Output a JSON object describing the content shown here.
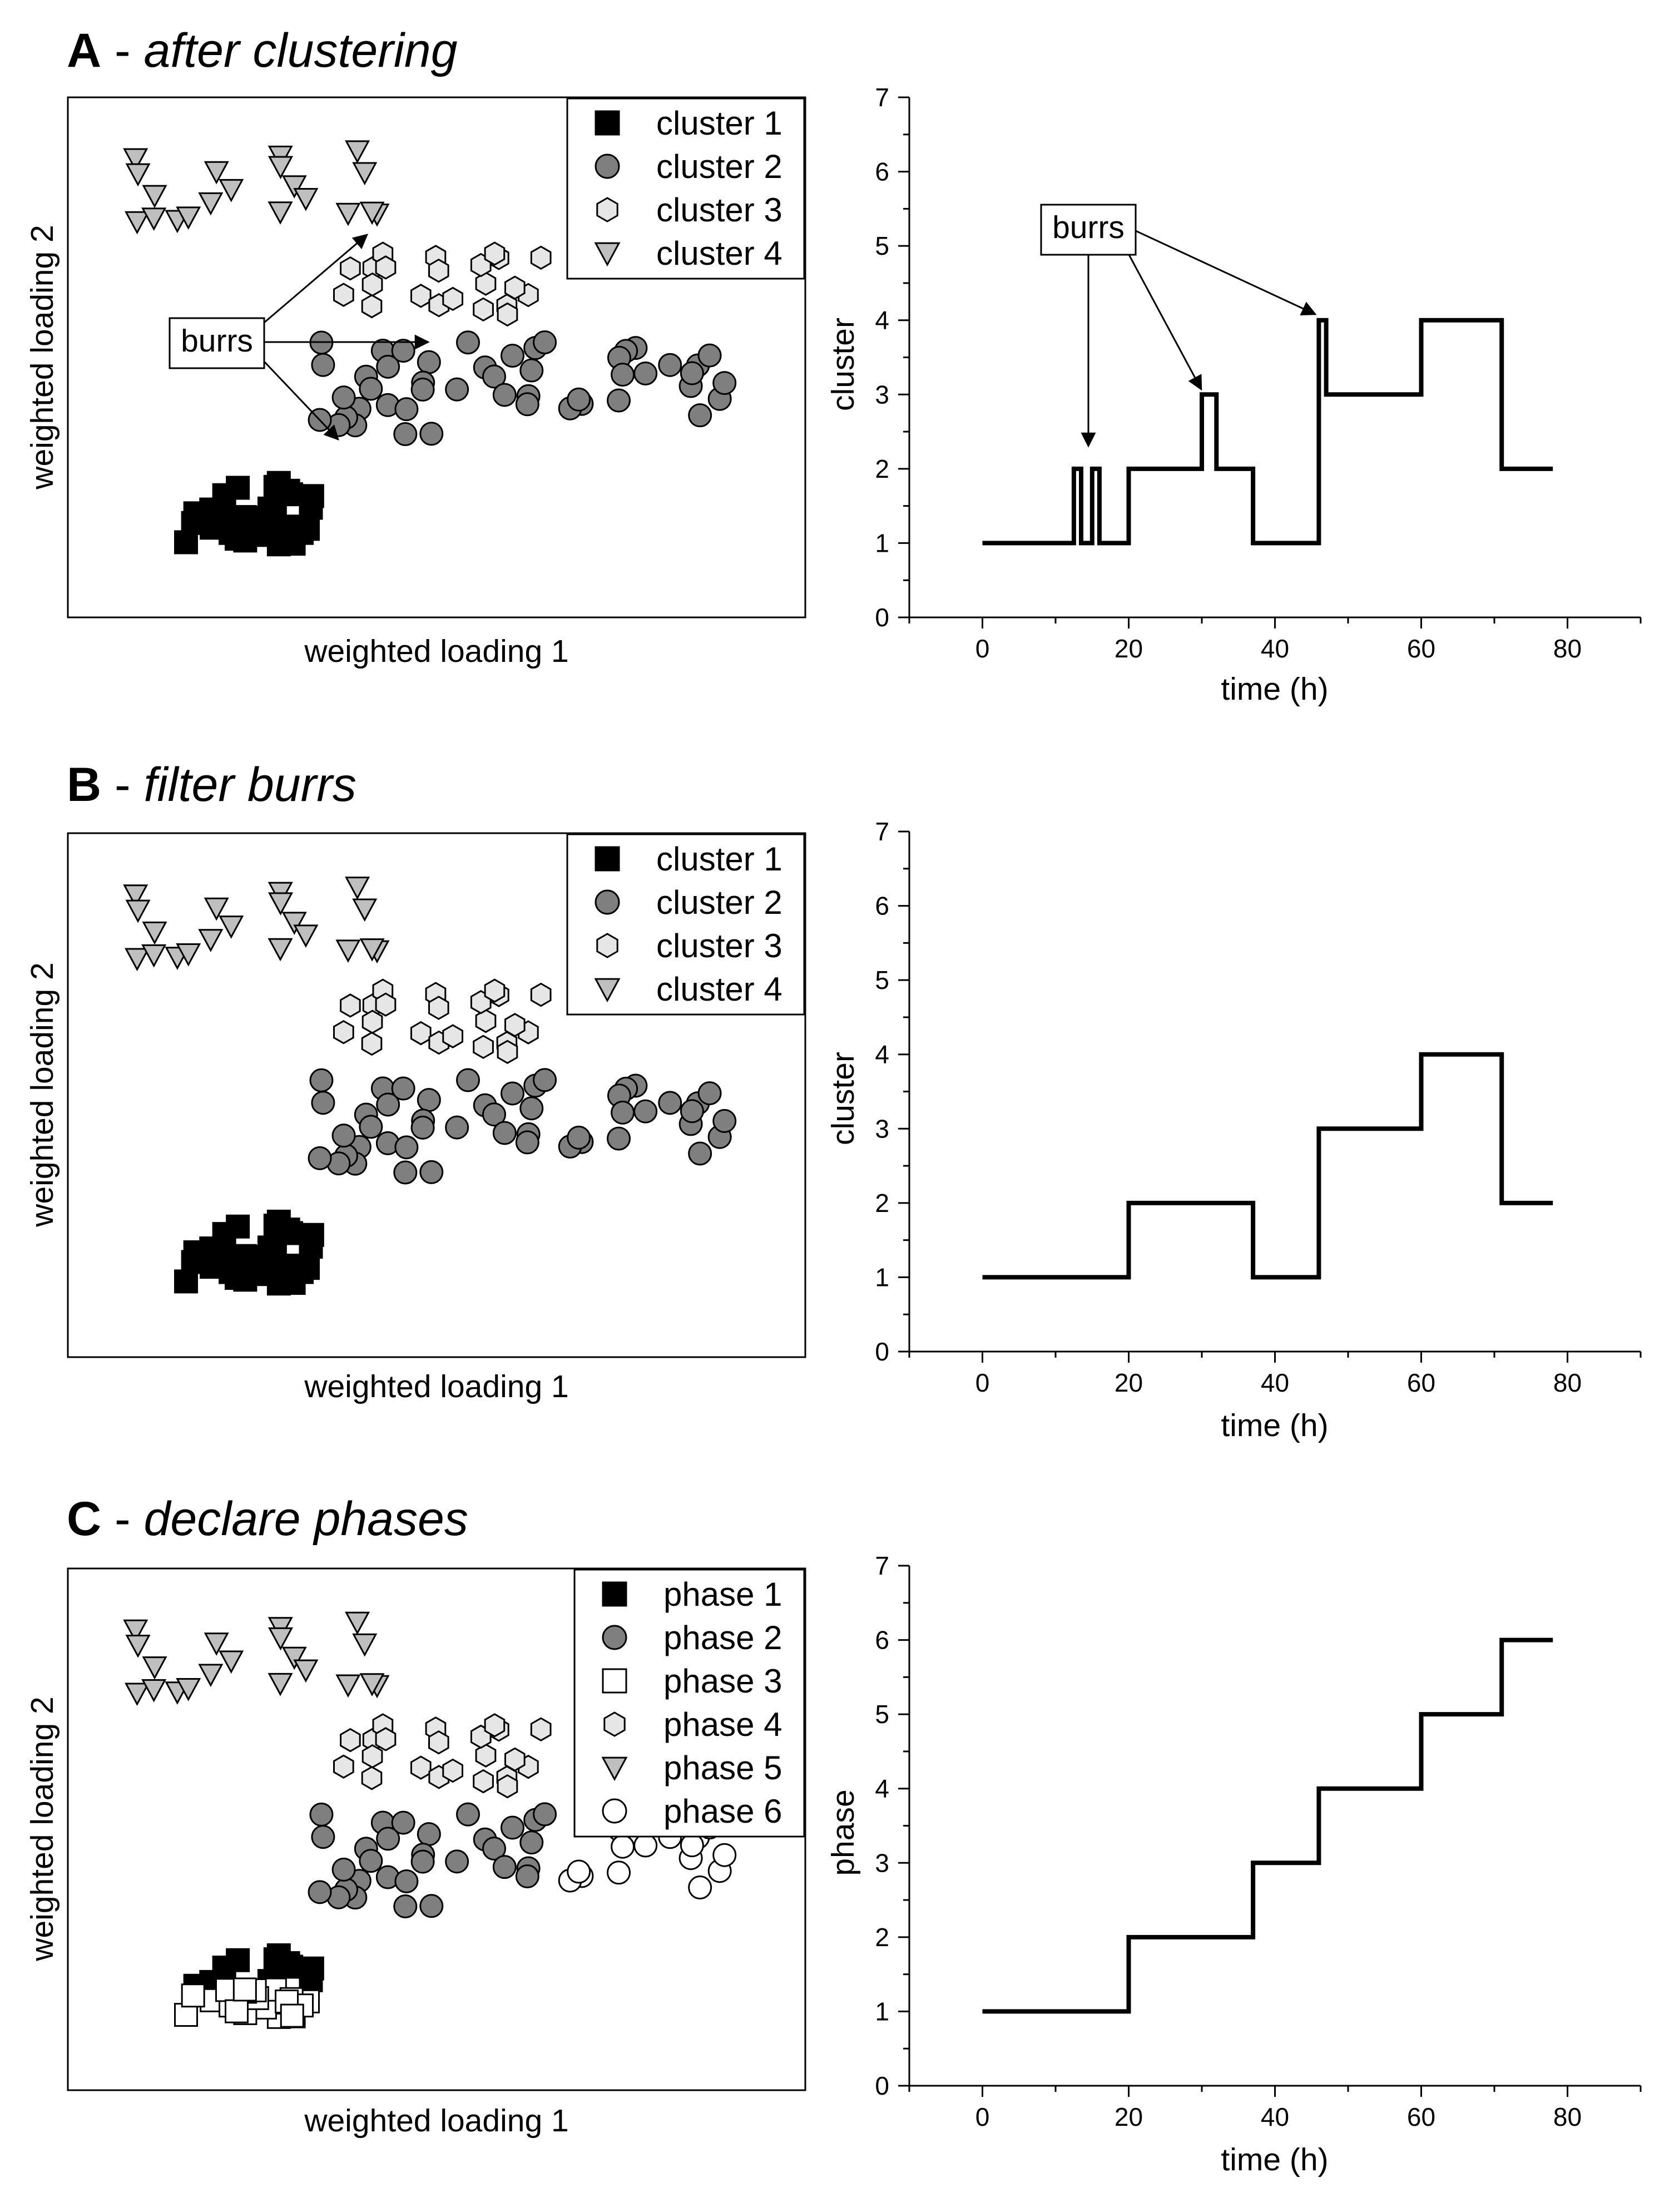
{
  "panels": [
    {
      "letter": "A",
      "subtitle": "after clustering",
      "scatter": {
        "xlabel": "weighted loading 1",
        "ylabel": "weighted loading 2",
        "legend": [
          {
            "label": "cluster 1",
            "marker": "square",
            "fill": "#000000"
          },
          {
            "label": "cluster 2",
            "marker": "circle",
            "fill": "#7f7f7f"
          },
          {
            "label": "cluster 3",
            "marker": "hexagon",
            "fill": "#e6e6e6"
          },
          {
            "label": "cluster 4",
            "marker": "triangle-down",
            "fill": "#bfbfbf"
          }
        ],
        "annotation": "burrs"
      },
      "step": {
        "annotation": "burrs",
        "chart_data": {
          "type": "line",
          "xlabel": "time (h)",
          "ylabel": "cluster",
          "xlim": [
            -10,
            90
          ],
          "ylim": [
            0,
            7
          ],
          "xticks": [
            0,
            20,
            40,
            60,
            80
          ],
          "yticks": [
            0,
            1,
            2,
            3,
            4,
            5,
            6,
            7
          ],
          "step_x": [
            0,
            12.5,
            12.5,
            13.5,
            13.5,
            15,
            15,
            16,
            16,
            20,
            20,
            30,
            30,
            32,
            32,
            37,
            37,
            46,
            46,
            47,
            47,
            60,
            60,
            71,
            71,
            78
          ],
          "step_y": [
            1,
            1,
            2,
            2,
            1,
            1,
            2,
            2,
            1,
            1,
            2,
            2,
            3,
            3,
            2,
            2,
            1,
            1,
            4,
            4,
            3,
            3,
            4,
            4,
            2,
            2
          ]
        }
      }
    },
    {
      "letter": "B",
      "subtitle": "filter burrs",
      "scatter": {
        "xlabel": "weighted loading 1",
        "ylabel": "weighted loading 2",
        "legend": [
          {
            "label": "cluster 1",
            "marker": "square",
            "fill": "#000000"
          },
          {
            "label": "cluster 2",
            "marker": "circle",
            "fill": "#7f7f7f"
          },
          {
            "label": "cluster 3",
            "marker": "hexagon",
            "fill": "#e6e6e6"
          },
          {
            "label": "cluster 4",
            "marker": "triangle-down",
            "fill": "#bfbfbf"
          }
        ]
      },
      "step": {
        "chart_data": {
          "type": "line",
          "xlabel": "time (h)",
          "ylabel": "cluster",
          "xlim": [
            -10,
            90
          ],
          "ylim": [
            0,
            7
          ],
          "xticks": [
            0,
            20,
            40,
            60,
            80
          ],
          "yticks": [
            0,
            1,
            2,
            3,
            4,
            5,
            6,
            7
          ],
          "step_x": [
            0,
            20,
            20,
            37,
            37,
            46,
            46,
            60,
            60,
            71,
            71,
            78
          ],
          "step_y": [
            1,
            1,
            2,
            2,
            1,
            1,
            3,
            3,
            4,
            4,
            2,
            2
          ]
        }
      }
    },
    {
      "letter": "C",
      "subtitle": "declare phases",
      "scatter": {
        "xlabel": "weighted loading 1",
        "ylabel": "weighted loading 2",
        "legend": [
          {
            "label": "phase 1",
            "marker": "square",
            "fill": "#000000"
          },
          {
            "label": "phase 2",
            "marker": "circle",
            "fill": "#7f7f7f"
          },
          {
            "label": "phase 3",
            "marker": "square",
            "fill": "#ffffff"
          },
          {
            "label": "phase 4",
            "marker": "hexagon",
            "fill": "#e6e6e6"
          },
          {
            "label": "phase 5",
            "marker": "triangle-down",
            "fill": "#bfbfbf"
          },
          {
            "label": "phase 6",
            "marker": "circle",
            "fill": "#ffffff"
          }
        ]
      },
      "step": {
        "chart_data": {
          "type": "line",
          "xlabel": "time (h)",
          "ylabel": "phase",
          "xlim": [
            -10,
            90
          ],
          "ylim": [
            0,
            7
          ],
          "xticks": [
            0,
            20,
            40,
            60,
            80
          ],
          "yticks": [
            0,
            1,
            2,
            3,
            4,
            5,
            6,
            7
          ],
          "step_x": [
            0,
            20,
            20,
            37,
            37,
            46,
            46,
            60,
            60,
            71,
            71,
            78
          ],
          "step_y": [
            1,
            1,
            2,
            2,
            3,
            3,
            4,
            4,
            5,
            5,
            6,
            6
          ]
        }
      }
    }
  ]
}
